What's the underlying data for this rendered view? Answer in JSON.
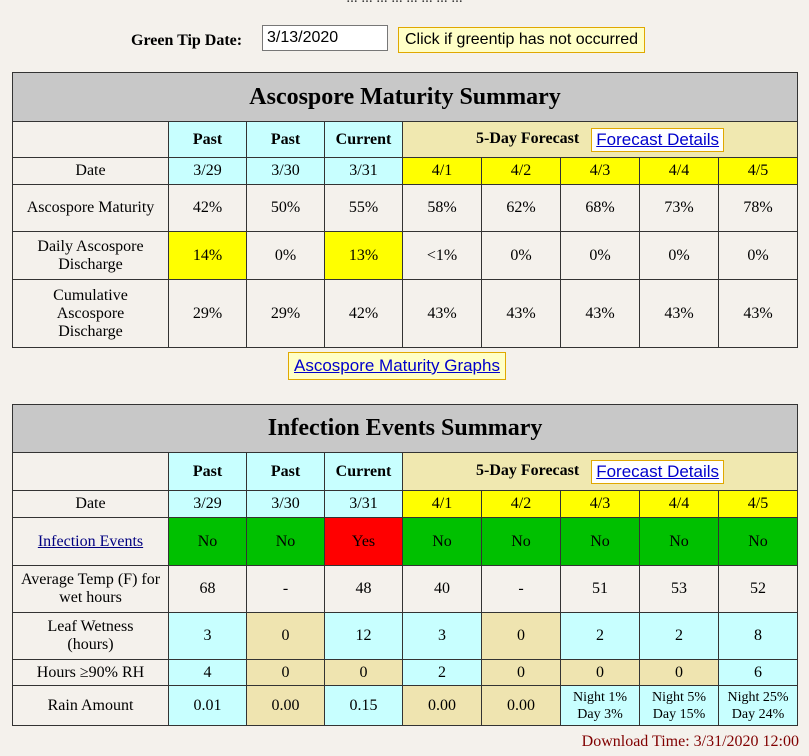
{
  "top_fragment": "... ... ... ... ... ... ... ...",
  "green_tip": {
    "label": "Green Tip Date:",
    "value": "3/13/2020",
    "button_label": "Click if greentip has not occurred"
  },
  "ascospore": {
    "title": "Ascospore Maturity Summary",
    "headers": {
      "past1": "Past",
      "past2": "Past",
      "current": "Current",
      "forecast": "5-Day Forecast",
      "forecast_link": "Forecast Details"
    },
    "rows": {
      "date": {
        "label": "Date",
        "values": [
          "3/29",
          "3/30",
          "3/31",
          "4/1",
          "4/2",
          "4/3",
          "4/4",
          "4/5"
        ]
      },
      "maturity": {
        "label": "Ascospore Maturity",
        "values": [
          "42%",
          "50%",
          "55%",
          "58%",
          "62%",
          "68%",
          "73%",
          "78%"
        ]
      },
      "daily": {
        "label": "Daily Ascospore Discharge",
        "values": [
          "14%",
          "0%",
          "13%",
          "<1%",
          "0%",
          "0%",
          "0%",
          "0%"
        ]
      },
      "cumulative": {
        "label": "Cumulative Ascospore Discharge",
        "values": [
          "29%",
          "29%",
          "42%",
          "43%",
          "43%",
          "43%",
          "43%",
          "43%"
        ]
      }
    },
    "graphs_link": "Ascospore Maturity Graphs"
  },
  "infection": {
    "title": "Infection Events Summary",
    "headers": {
      "past1": "Past",
      "past2": "Past",
      "current": "Current",
      "forecast": "5-Day Forecast",
      "forecast_link": "Forecast Details"
    },
    "rows": {
      "date": {
        "label": "Date",
        "values": [
          "3/29",
          "3/30",
          "3/31",
          "4/1",
          "4/2",
          "4/3",
          "4/4",
          "4/5"
        ]
      },
      "events": {
        "label": "Infection Events",
        "values": [
          "No",
          "No",
          "Yes",
          "No",
          "No",
          "No",
          "No",
          "No"
        ]
      },
      "temp": {
        "label": "Average Temp (F) for wet hours",
        "values": [
          "68",
          "-",
          "48",
          "40",
          "-",
          "51",
          "53",
          "52"
        ]
      },
      "wetness": {
        "label": "Leaf Wetness (hours)",
        "values": [
          "3",
          "0",
          "12",
          "3",
          "0",
          "2",
          "2",
          "8"
        ]
      },
      "rh": {
        "label": "Hours ≥90% RH",
        "values": [
          "4",
          "0",
          "0",
          "2",
          "0",
          "0",
          "0",
          "6"
        ]
      },
      "rain": {
        "label": "Rain Amount",
        "values": [
          "0.01",
          "0.00",
          "0.15",
          "0.00",
          "0.00"
        ],
        "forecast_probs": [
          {
            "night": "Night 1%",
            "day": "Day 3%"
          },
          {
            "night": "Night 5%",
            "day": "Day 15%"
          },
          {
            "night": "Night 25%",
            "day": "Day 24%"
          }
        ]
      }
    }
  },
  "download_time": "Download Time: 3/31/2020 12:00",
  "colors": {
    "header_gray": "#c8c8c8",
    "past_cyan": "#c8ffff",
    "forecast_tan": "#f0e8b0",
    "highlight_yellow": "#ffff00",
    "event_green": "#00c000",
    "event_red": "#ff0000",
    "download_color": "#800000"
  }
}
